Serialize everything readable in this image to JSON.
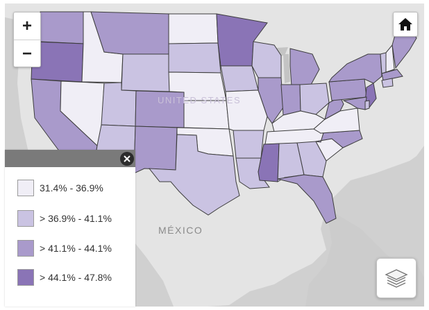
{
  "labels": {
    "usa": "UNITED STATES",
    "mexico": "MÉXICO"
  },
  "controls": {
    "zoom_in": "+",
    "zoom_out": "−"
  },
  "legend": {
    "items": [
      {
        "label": "31.4% - 36.9%",
        "color": "#f0eef6"
      },
      {
        "label": "> 36.9% - 41.1%",
        "color": "#cac3e2"
      },
      {
        "label": "> 41.1% - 44.1%",
        "color": "#a99acb"
      },
      {
        "label": "> 44.1% - 47.8%",
        "color": "#8a74b6"
      }
    ]
  },
  "colors": {
    "background": "#d7d7d7",
    "ocean": "#c9c9c9",
    "land": "#e6e6e6",
    "c1": "#f0eef6",
    "c2": "#cac3e2",
    "c3": "#a99acb",
    "c4": "#8a74b6"
  },
  "states": [
    {
      "name": "WA",
      "class": 3
    },
    {
      "name": "OR",
      "class": 4
    },
    {
      "name": "CA",
      "class": 3
    },
    {
      "name": "NV",
      "class": 1
    },
    {
      "name": "ID",
      "class": 1
    },
    {
      "name": "MT",
      "class": 3
    },
    {
      "name": "WY",
      "class": 2
    },
    {
      "name": "UT",
      "class": 2
    },
    {
      "name": "AZ",
      "class": 2
    },
    {
      "name": "CO",
      "class": 3
    },
    {
      "name": "NM",
      "class": 3
    },
    {
      "name": "ND",
      "class": 1
    },
    {
      "name": "SD",
      "class": 2
    },
    {
      "name": "NE",
      "class": 1
    },
    {
      "name": "KS",
      "class": 1
    },
    {
      "name": "OK",
      "class": 1
    },
    {
      "name": "TX",
      "class": 2
    },
    {
      "name": "MN",
      "class": 4
    },
    {
      "name": "IA",
      "class": 2
    },
    {
      "name": "MO",
      "class": 1
    },
    {
      "name": "AR",
      "class": 2
    },
    {
      "name": "LA",
      "class": 2
    },
    {
      "name": "WI",
      "class": 2
    },
    {
      "name": "IL",
      "class": 3
    },
    {
      "name": "MI",
      "class": 3
    },
    {
      "name": "IN",
      "class": 3
    },
    {
      "name": "OH",
      "class": 2
    },
    {
      "name": "KY",
      "class": 1
    },
    {
      "name": "TN",
      "class": 1
    },
    {
      "name": "MS",
      "class": 4
    },
    {
      "name": "AL",
      "class": 2
    },
    {
      "name": "GA",
      "class": 2
    },
    {
      "name": "FL",
      "class": 3
    },
    {
      "name": "SC",
      "class": 1
    },
    {
      "name": "NC",
      "class": 3
    },
    {
      "name": "VA",
      "class": 1
    },
    {
      "name": "WV",
      "class": 3
    },
    {
      "name": "PA",
      "class": 3
    },
    {
      "name": "NY",
      "class": 3
    },
    {
      "name": "VT",
      "class": 2
    },
    {
      "name": "NH",
      "class": 1
    },
    {
      "name": "ME",
      "class": 3
    },
    {
      "name": "MA",
      "class": 3
    },
    {
      "name": "CT",
      "class": 2
    },
    {
      "name": "NJ",
      "class": 4
    },
    {
      "name": "MD",
      "class": 3
    },
    {
      "name": "DE",
      "class": 2
    }
  ]
}
